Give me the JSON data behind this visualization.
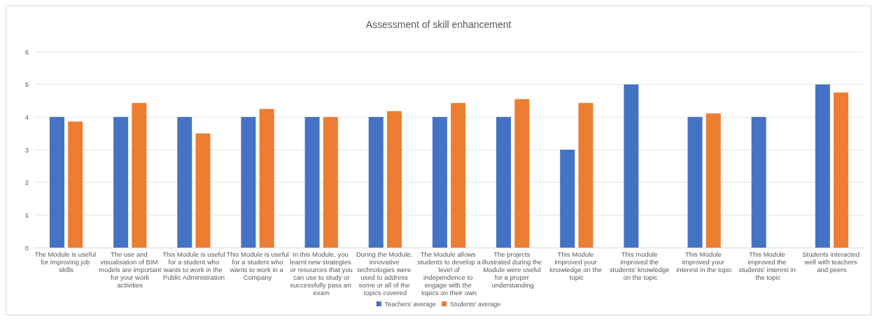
{
  "chart_data": {
    "type": "bar",
    "title": "Assessment of skill enhancement",
    "categories": [
      "The Module is useful for improving job skills",
      "The use and visualisation of BIM models are important for your work activities",
      "This Module is useful for a student who wants to work in the Public Administration",
      "This Module is useful for a student who wants to work in a Company",
      "In this Module, you learnt new strategies or resources that you can use to study or successfully pass an exam",
      "During the Module, innovative technologies were used to address some or all of the topics covered",
      "The Module allows students to develop a level of independence to engage with the topics on their own",
      "The projects illustrated during the Module were useful for a proper understanding",
      "This Module improved your knowledge on the topic",
      "This module improved the students' knowledge on the topic",
      "This Module improved your interest in the topic",
      "This Module improved the students' interest in the topic",
      "Students interacted well with teachers and peers"
    ],
    "series": [
      {
        "name": "Teachers' average",
        "color": "#4472c4",
        "values": [
          4,
          4,
          4,
          4,
          4,
          4,
          4,
          4,
          3,
          5,
          4,
          4,
          5
        ]
      },
      {
        "name": "Students' average",
        "color": "#ed7d31",
        "values": [
          3.86,
          4.43,
          3.5,
          4.25,
          4,
          4.18,
          4.43,
          4.55,
          4.43,
          null,
          4.11,
          null,
          4.75
        ]
      }
    ],
    "ylim": [
      0,
      6
    ],
    "yticks": [
      0,
      1,
      2,
      3,
      4,
      5,
      6
    ],
    "grid": "y",
    "legend": "bottom"
  }
}
